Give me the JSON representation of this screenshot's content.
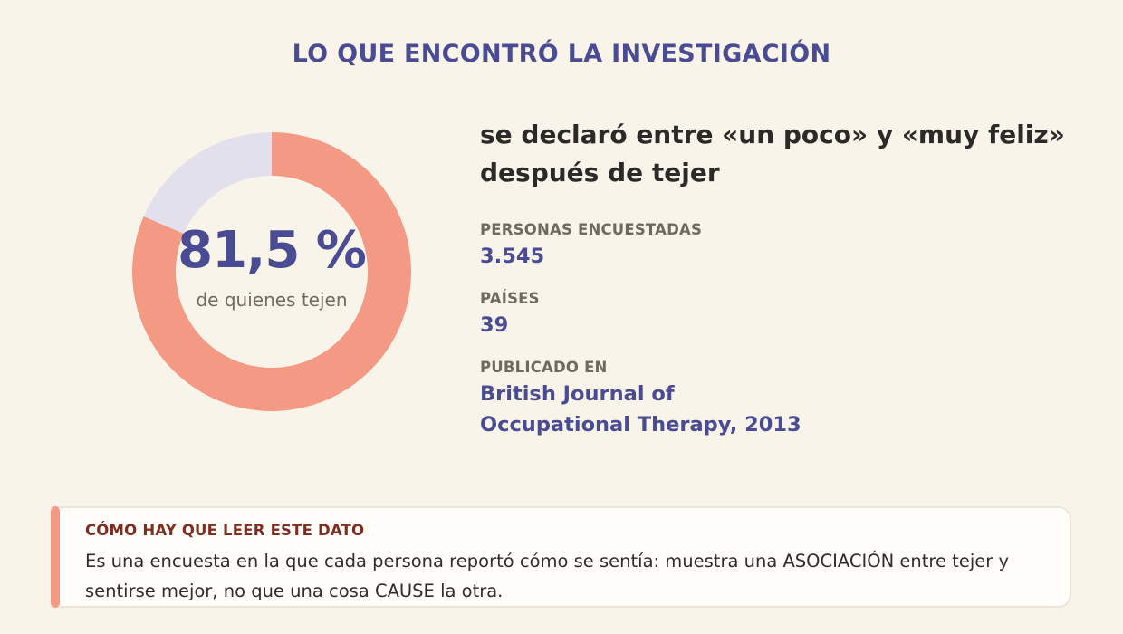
{
  "heading": "LO QUE ENCONTRÓ LA INVESTIGACIÓN",
  "colors": {
    "accent": "#f49a84",
    "remainder": "#e3e0ee",
    "brand": "#4a4c93",
    "background": "#f9f4e9"
  },
  "chart_data": {
    "type": "pie",
    "variant": "donut",
    "value_label": "81,5 %",
    "caption": "de quienes tejen",
    "slices": [
      {
        "label": "",
        "value": 81.5,
        "color": "#f49a84"
      },
      {
        "label": "",
        "value": 18.5,
        "color": "#e3e0ee"
      }
    ]
  },
  "headline": "se declaró entre «un poco» y «muy feliz» después de tejer",
  "facts": [
    {
      "label": "PERSONAS ENCUESTADAS",
      "value": "3.545"
    },
    {
      "label": "PAÍSES",
      "value": "39"
    },
    {
      "label": "PUBLICADO EN",
      "value": "British Journal of Occupational Therapy, 2013"
    }
  ],
  "note": {
    "title": "CÓMO HAY QUE LEER ESTE DATO",
    "text": "Es una encuesta en la que cada persona reportó cómo se sentía: muestra una ASOCIACIÓN entre tejer y sentirse mejor, no que una cosa CAUSE la otra."
  }
}
